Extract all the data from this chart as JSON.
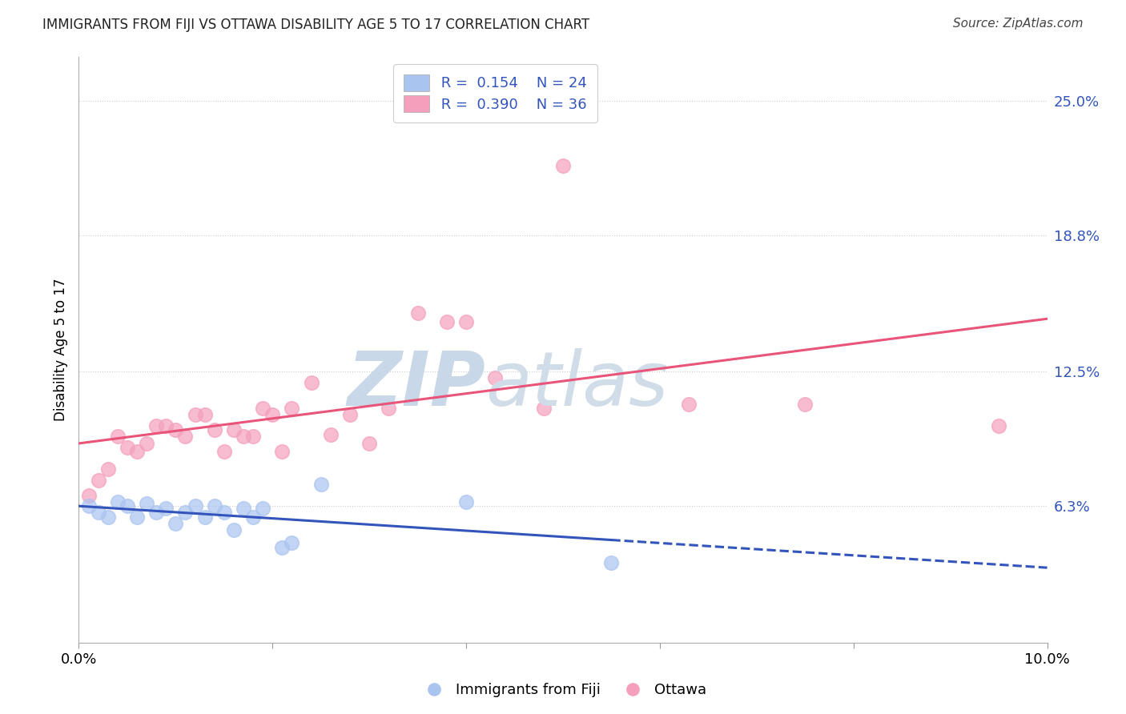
{
  "title": "IMMIGRANTS FROM FIJI VS OTTAWA DISABILITY AGE 5 TO 17 CORRELATION CHART",
  "source": "Source: ZipAtlas.com",
  "ylabel_label": "Disability Age 5 to 17",
  "right_yticks": [
    "25.0%",
    "18.8%",
    "12.5%",
    "6.3%"
  ],
  "right_ytick_vals": [
    0.25,
    0.188,
    0.125,
    0.063
  ],
  "xlim": [
    0.0,
    0.1
  ],
  "ylim": [
    0.0,
    0.27
  ],
  "fiji_color": "#aac4f0",
  "ottawa_color": "#f4a0bc",
  "fiji_edge_color": "#aac4f0",
  "ottawa_edge_color": "#f4a0bc",
  "fiji_line_color": "#3355bb",
  "ottawa_line_color": "#e8547a",
  "fiji_R": "0.154",
  "fiji_N": "24",
  "ottawa_R": "0.390",
  "ottawa_N": "36",
  "fiji_x": [
    0.001,
    0.002,
    0.003,
    0.004,
    0.005,
    0.006,
    0.007,
    0.008,
    0.009,
    0.01,
    0.011,
    0.012,
    0.013,
    0.014,
    0.015,
    0.016,
    0.017,
    0.018,
    0.019,
    0.021,
    0.022,
    0.025,
    0.04,
    0.055
  ],
  "fiji_y": [
    0.063,
    0.06,
    0.058,
    0.065,
    0.063,
    0.058,
    0.064,
    0.06,
    0.062,
    0.055,
    0.06,
    0.063,
    0.058,
    0.063,
    0.06,
    0.052,
    0.062,
    0.058,
    0.062,
    0.044,
    0.046,
    0.073,
    0.065,
    0.037
  ],
  "ottawa_x": [
    0.001,
    0.002,
    0.003,
    0.004,
    0.005,
    0.006,
    0.007,
    0.008,
    0.009,
    0.01,
    0.011,
    0.012,
    0.013,
    0.014,
    0.015,
    0.016,
    0.017,
    0.018,
    0.019,
    0.02,
    0.021,
    0.022,
    0.024,
    0.026,
    0.028,
    0.03,
    0.032,
    0.035,
    0.038,
    0.04,
    0.043,
    0.048,
    0.05,
    0.063,
    0.075,
    0.095
  ],
  "ottawa_y": [
    0.068,
    0.075,
    0.08,
    0.095,
    0.09,
    0.088,
    0.092,
    0.1,
    0.1,
    0.098,
    0.095,
    0.105,
    0.105,
    0.098,
    0.088,
    0.098,
    0.095,
    0.095,
    0.108,
    0.105,
    0.088,
    0.108,
    0.12,
    0.096,
    0.105,
    0.092,
    0.108,
    0.152,
    0.148,
    0.148,
    0.122,
    0.108,
    0.22,
    0.11,
    0.11,
    0.1
  ],
  "background_color": "#ffffff",
  "grid_color": "#cccccc",
  "grid_style": "dotted",
  "watermark_zip": "ZIP",
  "watermark_atlas": "atlas",
  "watermark_color": "#c8d8e8",
  "legend_fiji_label": "Immigrants from Fiji",
  "legend_ottawa_label": "Ottawa",
  "title_fontsize": 12,
  "source_fontsize": 11,
  "axis_fontsize": 12
}
